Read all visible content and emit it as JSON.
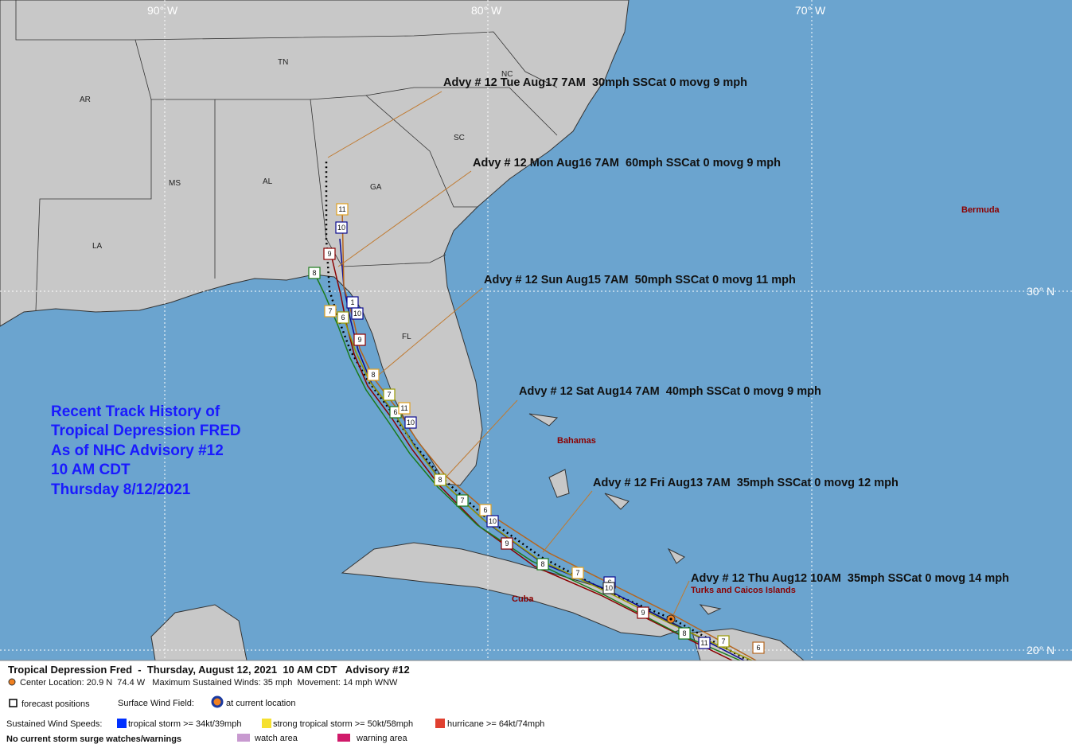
{
  "map": {
    "longitude_labels": [
      "90° W",
      "80° W",
      "70° W"
    ],
    "latitude_labels": [
      "30° N",
      "20° N"
    ],
    "region_labels": [
      "AR",
      "TN",
      "NC",
      "SC",
      "MS",
      "AL",
      "GA",
      "LA",
      "FL"
    ],
    "place_labels": [
      "Bermuda",
      "Bahamas",
      "Cuba",
      "Turks and Caicos Islands"
    ],
    "track_labels": [
      "11",
      "10",
      "9",
      "8",
      "7",
      "6",
      "1",
      "10",
      "9",
      "8",
      "7",
      "6",
      "11",
      "10",
      "8",
      "7",
      "6",
      "10",
      "9",
      "8",
      "7",
      "6",
      "10",
      "9",
      "8",
      "11",
      "7",
      "6"
    ]
  },
  "annotations": [
    "Advy # 12 Tue Aug17 7AM  30mph SSCat 0 movg 9 mph",
    "Advy # 12 Mon Aug16 7AM  60mph SSCat 0 movg 9 mph",
    "Advy # 12 Sun Aug15 7AM  50mph SSCat 0 movg 11 mph",
    "Advy # 12 Sat Aug14 7AM  40mph SSCat 0 movg 9 mph",
    "Advy # 12 Fri Aug13 7AM  35mph SSCat 0 movg 12 mph",
    "Advy # 12 Thu Aug12 10AM  35mph SSCat 0 movg 14 mph"
  ],
  "history_title": [
    "Recent Track History of",
    "Tropical Depression FRED",
    "As of NHC Advisory #12",
    "10 AM CDT",
    "Thursday 8/12/2021"
  ],
  "legend": {
    "header": "Tropical Depression Fred  -  Thursday, August 12, 2021  10 AM CDT   Advisory #12",
    "center": "Center Location: 20.9 N  74.4 W   Maximum Sustained Winds: 35 mph  Movement: 14 mph WNW",
    "forecast_positions": "forecast positions",
    "surface_wind_field": "Surface Wind Field:",
    "at_current_location": "at current location",
    "sustained_wind_speeds": "Sustained Wind Speeds:",
    "tropical_storm": "tropical storm >= 34kt/39mph",
    "strong_tropical_storm": "strong tropical storm >= 50kt/58mph",
    "hurricane": "hurricane >= 64kt/74mph",
    "no_surge": "No current storm surge watches/warnings",
    "watch_area": "watch area",
    "warning_area": "warning area"
  }
}
